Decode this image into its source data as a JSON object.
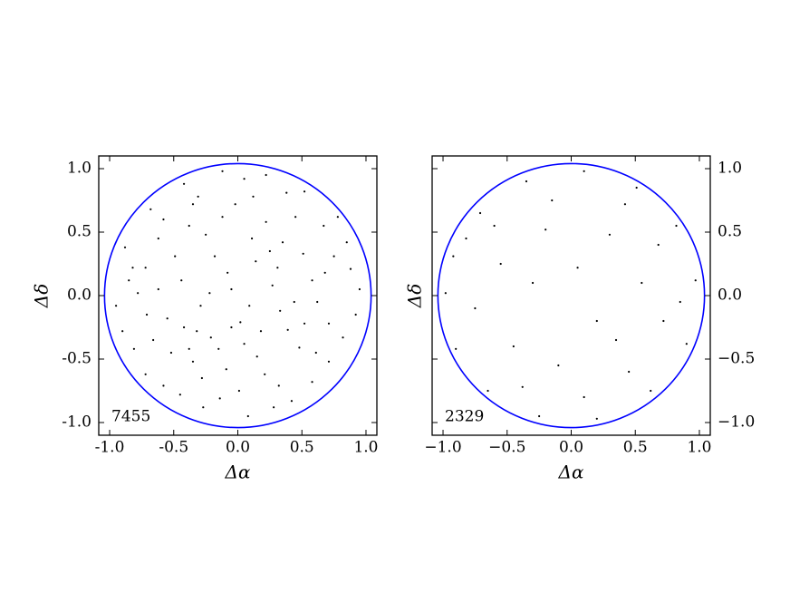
{
  "chart_data": [
    {
      "type": "scatter",
      "xlabel": "Δα",
      "ylabel": "Δδ",
      "annotation": "7455",
      "color": "#000000",
      "circle_radius": 1.04,
      "circle_color": "#0000ff",
      "ytick_side": "left",
      "xlim": [
        -1.085,
        1.085
      ],
      "ylim": [
        -1.1,
        1.1
      ],
      "xticks": [
        {
          "value": -1.0,
          "label": "-1.0"
        },
        -0.5,
        {
          "value": 0.0,
          "label": "0.0"
        },
        0.5,
        {
          "value": 1.0,
          "label": "1.0"
        }
      ],
      "yticks": [
        {
          "value": -1.0,
          "label": "-1.0"
        },
        -0.5,
        {
          "value": 0.0,
          "label": "0.0"
        },
        0.5,
        {
          "value": 1.0,
          "label": "1.0"
        }
      ],
      "x": [
        -0.85,
        -0.62,
        -0.31,
        0.05,
        0.38,
        0.67,
        0.88,
        0.92,
        0.71,
        0.42,
        0.08,
        -0.27,
        -0.58,
        -0.81,
        -0.95,
        -0.44,
        -0.21,
        0.14,
        0.33,
        -0.05,
        -0.72,
        -0.55,
        -0.38,
        -0.12,
        0.22,
        0.51,
        0.62,
        0.48,
        0.21,
        -0.09,
        -0.35,
        -0.66,
        -0.78,
        -0.18,
        0.02,
        0.27,
        0.11,
        -0.29,
        -0.49,
        0.39,
        0.75,
        0.82,
        0.58,
        0.28,
        -0.14,
        -0.45,
        -0.72,
        -0.9,
        -0.88,
        -0.68,
        -0.42,
        -0.12,
        0.22,
        0.52,
        0.78,
        0.95,
        0.58,
        0.35,
        -0.02,
        -0.25,
        -0.62,
        -0.32,
        -0.15,
        0.05,
        0.18,
        0.44,
        0.31,
        -0.08,
        -0.22,
        0.09,
        -0.52,
        -0.28,
        0.01,
        0.32,
        0.61,
        0.71,
        0.68,
        0.45,
        0.12,
        -0.35,
        -0.58,
        -0.82,
        -0.71,
        -0.42,
        -0.38,
        -0.05,
        0.15,
        0.52,
        0.85,
        0.25
      ],
      "y": [
        0.12,
        0.45,
        0.78,
        0.92,
        0.81,
        0.55,
        0.21,
        -0.15,
        -0.52,
        -0.83,
        -0.95,
        -0.88,
        -0.71,
        -0.42,
        -0.08,
        0.12,
        -0.33,
        0.27,
        -0.12,
        0.05,
        0.22,
        -0.18,
        0.55,
        0.62,
        0.58,
        0.33,
        -0.05,
        -0.41,
        -0.62,
        -0.58,
        -0.52,
        -0.35,
        0.02,
        0.31,
        -0.21,
        0.08,
        0.45,
        -0.08,
        0.31,
        -0.27,
        0.31,
        -0.33,
        -0.68,
        -0.88,
        -0.81,
        -0.78,
        -0.62,
        -0.28,
        0.38,
        0.68,
        0.88,
        0.98,
        0.95,
        0.82,
        0.62,
        0.05,
        0.12,
        0.42,
        0.72,
        0.48,
        0.05,
        -0.28,
        -0.42,
        -0.38,
        -0.28,
        -0.05,
        0.22,
        0.18,
        0.02,
        -0.08,
        -0.45,
        -0.65,
        -0.75,
        -0.71,
        -0.45,
        -0.22,
        0.18,
        0.62,
        0.78,
        0.72,
        0.6,
        0.22,
        -0.15,
        -0.25,
        -0.42,
        -0.25,
        -0.48,
        -0.22,
        0.42,
        0.35
      ]
    },
    {
      "type": "scatter",
      "xlabel": "Δα",
      "ylabel": "Δδ",
      "annotation": "2329",
      "color": "#000000",
      "circle_radius": 1.04,
      "circle_color": "#0000ff",
      "ytick_side": "right",
      "xlim": [
        -1.085,
        1.085
      ],
      "ylim": [
        -1.1,
        1.1
      ],
      "xticks": [
        {
          "value": -1.0,
          "label": "−1.0"
        },
        {
          "value": -0.5,
          "label": "−0.5"
        },
        {
          "value": 0.0,
          "label": "0.0"
        },
        0.5,
        {
          "value": 1.0,
          "label": "1.0"
        }
      ],
      "yticks": [
        {
          "value": -1.0,
          "label": "−1.0"
        },
        {
          "value": -0.5,
          "label": "−0.5"
        },
        {
          "value": 0.0,
          "label": "0.0"
        },
        0.5,
        {
          "value": 1.0,
          "label": "1.0"
        }
      ],
      "x": [
        -0.92,
        -0.71,
        -0.35,
        0.1,
        0.51,
        0.82,
        0.97,
        0.9,
        0.62,
        0.2,
        -0.25,
        -0.65,
        -0.9,
        -0.98,
        -0.55,
        -0.2,
        0.3,
        0.55,
        0.35,
        -0.1,
        -0.45,
        -0.75,
        -0.6,
        0.05,
        0.68,
        0.72,
        0.1,
        -0.38,
        -0.82,
        0.42,
        -0.15,
        0.2,
        -0.3,
        0.85,
        0.45
      ],
      "y": [
        0.31,
        0.65,
        0.9,
        0.98,
        0.85,
        0.55,
        0.12,
        -0.38,
        -0.75,
        -0.97,
        -0.95,
        -0.75,
        -0.42,
        0.02,
        0.25,
        0.52,
        0.48,
        0.1,
        -0.35,
        -0.55,
        -0.4,
        -0.1,
        0.55,
        0.22,
        0.4,
        -0.2,
        -0.8,
        -0.72,
        0.45,
        0.72,
        0.75,
        -0.2,
        0.1,
        -0.05,
        -0.6
      ]
    }
  ]
}
